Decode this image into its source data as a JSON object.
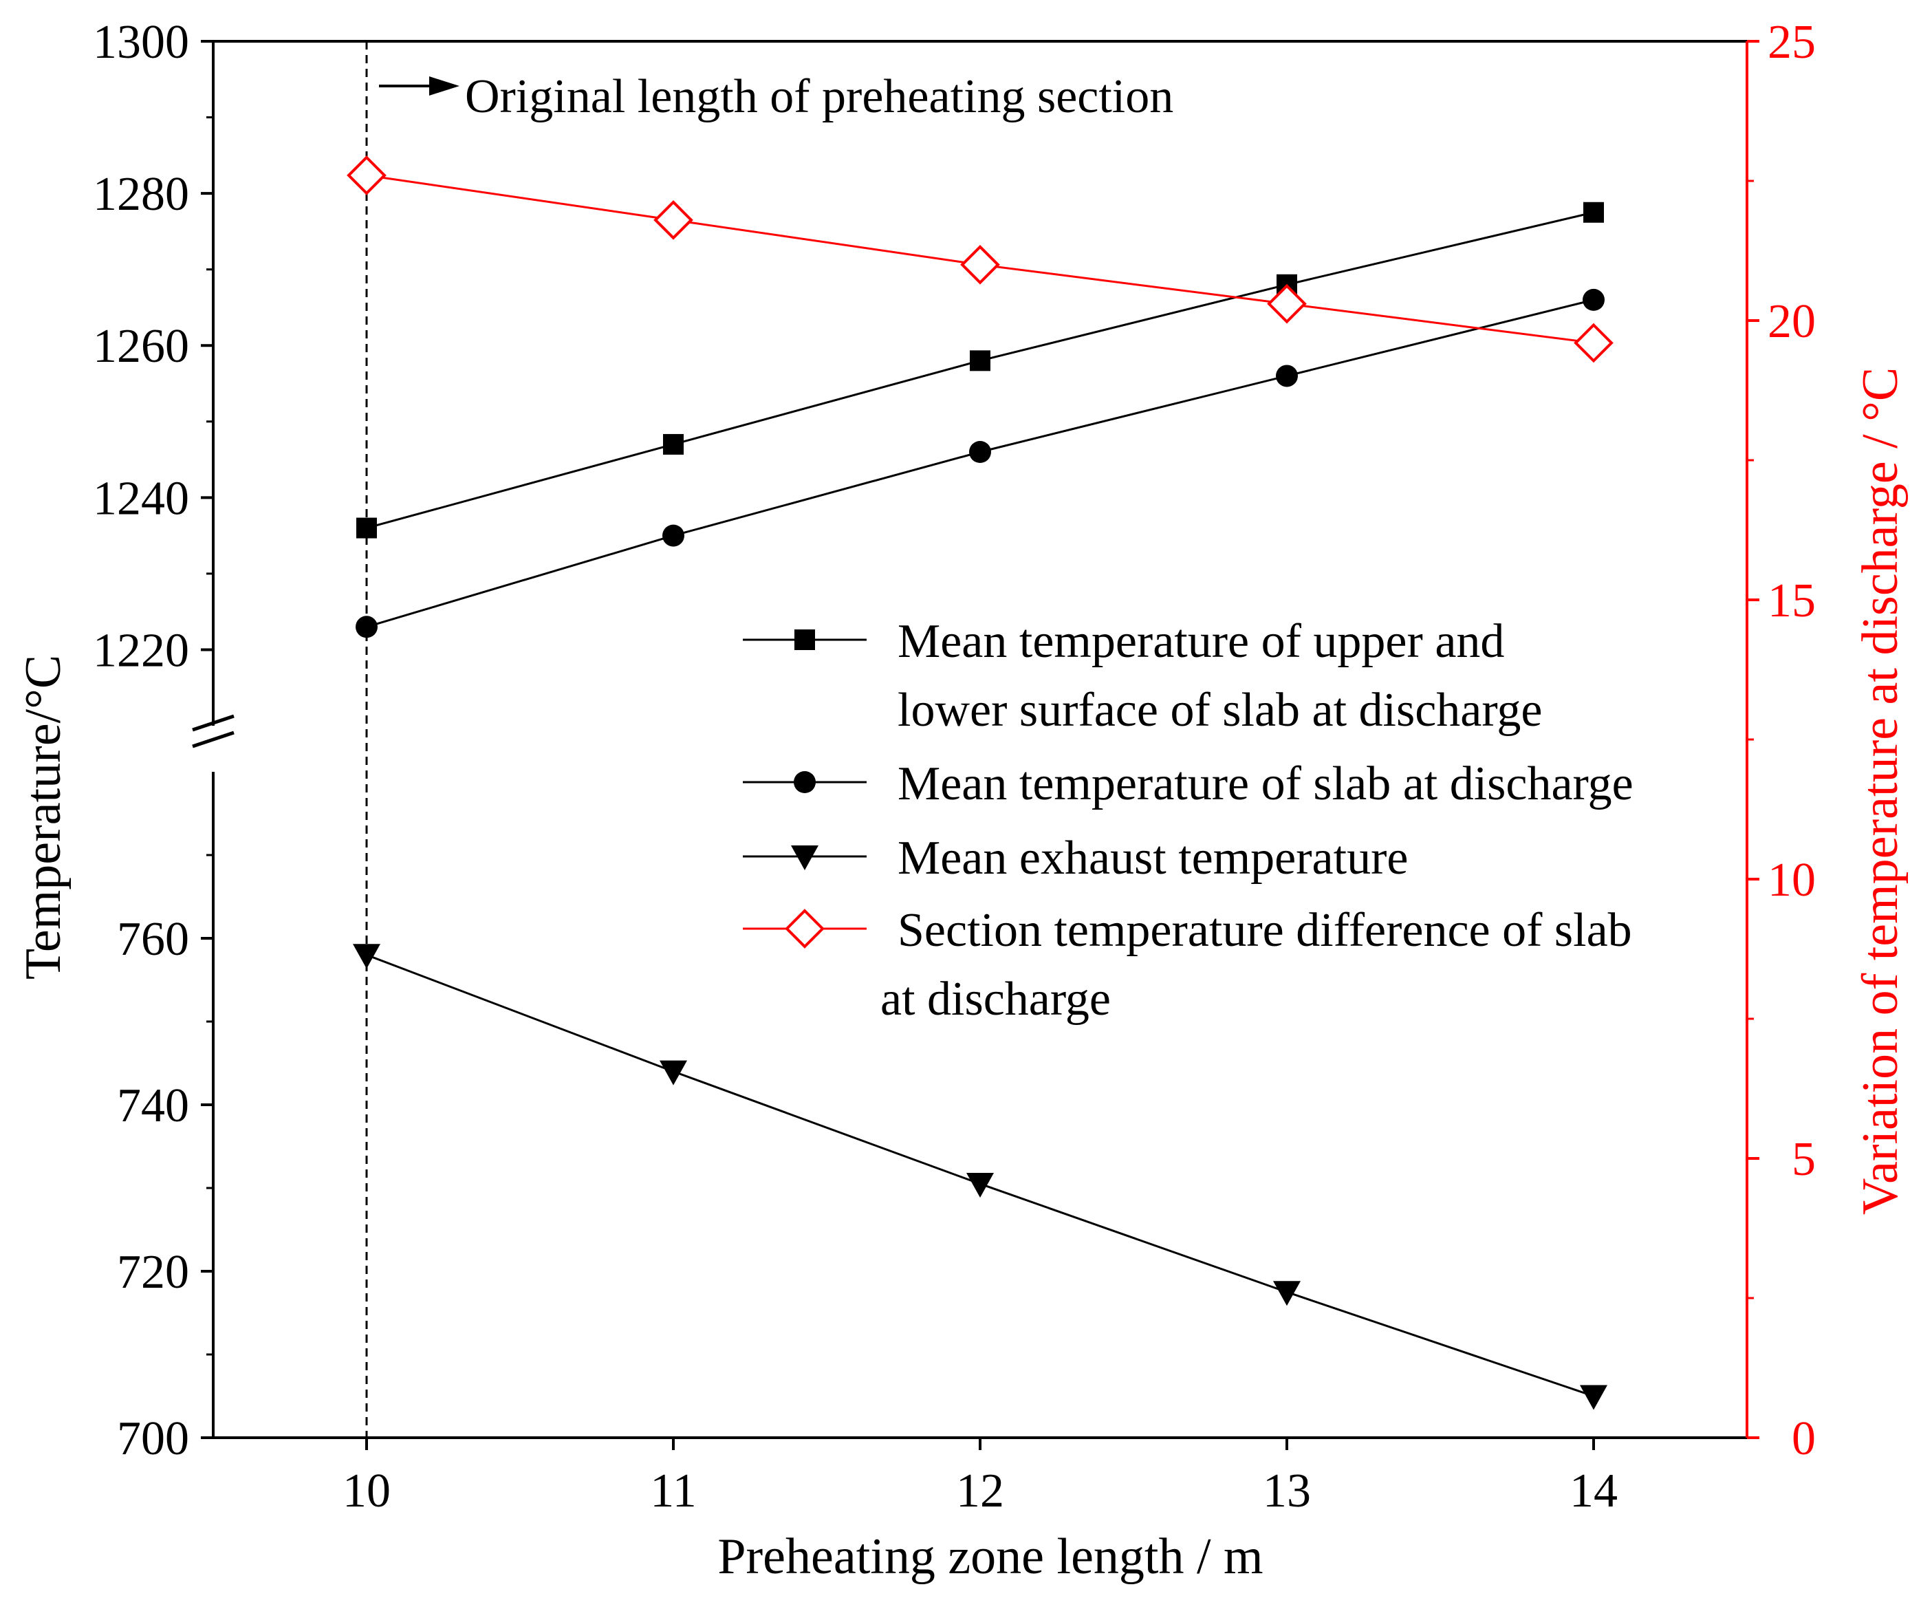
{
  "chart_data": {
    "type": "line",
    "title": "",
    "xlabel": "Preheating zone length / m",
    "ylabel": "Temperature/°C",
    "y2label": "Variation of temperature at discharge / °C",
    "x": [
      10,
      11,
      12,
      13,
      14
    ],
    "x_ticks": [
      "10",
      "11",
      "12",
      "13",
      "14"
    ],
    "xlim": [
      9.5,
      14.5
    ],
    "y_axis_break": {
      "upper_range": [
        1210,
        1300
      ],
      "lower_range": [
        700,
        780
      ],
      "upper_ticks": [
        "1300",
        "1280",
        "1260",
        "1240",
        "1220"
      ],
      "lower_ticks": [
        "760",
        "740",
        "720",
        "700"
      ]
    },
    "y2lim": [
      0,
      25
    ],
    "y2_ticks": [
      "25",
      "20",
      "15",
      "10",
      "5",
      "0"
    ],
    "series": [
      {
        "name": "Mean temperature of  upper and lower surface of slab at discharge",
        "legend_lines": [
          "Mean temperature of  upper and",
          "lower surface of slab at discharge"
        ],
        "marker": "square",
        "color": "#000000",
        "axis": "left",
        "values": [
          1236,
          1247,
          1258,
          1268,
          1277.5
        ]
      },
      {
        "name": "Mean temperature of slab at discharge",
        "legend_lines": [
          "Mean temperature of slab at discharge"
        ],
        "marker": "circle",
        "color": "#000000",
        "axis": "left",
        "values": [
          1223,
          1235,
          1246,
          1256,
          1266
        ]
      },
      {
        "name": "Mean exhaust temperature",
        "legend_lines": [
          "Mean exhaust temperature"
        ],
        "marker": "triangle-down",
        "color": "#000000",
        "axis": "left",
        "values": [
          758,
          744,
          730.5,
          717.5,
          705
        ]
      },
      {
        "name": "Section temperature difference of slab at discharge",
        "legend_lines": [
          " Section temperature difference of slab",
          "at discharge"
        ],
        "marker": "diamond-open",
        "color": "#ff0000",
        "axis": "right",
        "values": [
          22.6,
          21.8,
          21.0,
          20.3,
          19.6
        ]
      }
    ],
    "annotation": {
      "text": "Original length of preheating section",
      "x": 10
    },
    "legend_position": "center-right"
  }
}
